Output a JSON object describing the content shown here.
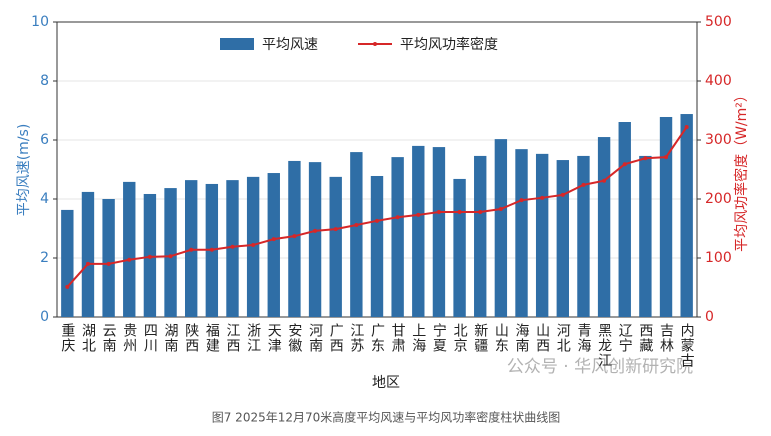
{
  "chart_data": {
    "type": "bar-line",
    "xlabel": "地区",
    "ylabel": "平均风速(m/s)",
    "y2label": "平均风功率密度（W/m²）",
    "caption": "图7  2025年12月70米高度平均风速与平均风功率密度柱状曲线图",
    "watermark": "公众号 · 华风创新研究院",
    "categories": [
      "重庆",
      "湖北",
      "云南",
      "贵州",
      "四川",
      "湖南",
      "陕西",
      "福建",
      "江西",
      "浙江",
      "天津",
      "安徽",
      "河南",
      "广西",
      "江苏",
      "广东",
      "甘肃",
      "上海",
      "宁夏",
      "北京",
      "新疆",
      "山东",
      "海南",
      "山西",
      "河北",
      "青海",
      "黑龙江",
      "辽宁",
      "西藏",
      "吉林",
      "内蒙古"
    ],
    "series": [
      {
        "name": "平均风速",
        "type": "bar",
        "color": "#2f6ea6",
        "values": [
          3.63,
          4.24,
          4.0,
          4.58,
          4.17,
          4.37,
          4.64,
          4.51,
          4.64,
          4.75,
          4.88,
          5.29,
          5.25,
          4.75,
          5.59,
          4.78,
          5.42,
          5.8,
          5.76,
          4.68,
          5.46,
          6.03,
          5.69,
          5.53,
          5.32,
          5.46,
          6.1,
          6.61,
          5.46,
          6.78,
          6.88
        ]
      },
      {
        "name": "平均风功率密度",
        "type": "line",
        "axis": "y2",
        "color": "#d62728",
        "values": [
          51,
          90,
          90,
          97,
          102,
          103,
          114,
          114,
          119,
          122,
          132,
          137,
          146,
          149,
          156,
          163,
          169,
          173,
          178,
          178,
          178,
          183,
          198,
          202,
          207,
          224,
          231,
          259,
          269,
          271,
          322
        ]
      }
    ],
    "ylim": [
      0,
      10
    ],
    "yticks": [
      0,
      2,
      4,
      6,
      8,
      10
    ],
    "y2lim": [
      0,
      500
    ],
    "y2ticks": [
      0,
      100,
      200,
      300,
      400,
      500
    ],
    "grid": true,
    "legend": "top"
  }
}
